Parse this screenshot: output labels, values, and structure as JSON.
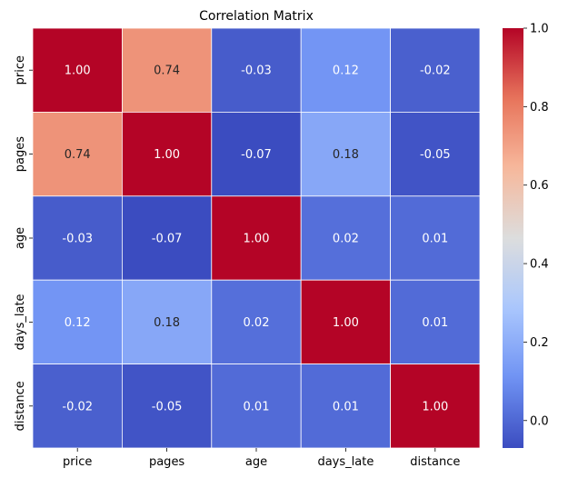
{
  "chart_data": {
    "type": "heatmap",
    "title": "Correlation Matrix",
    "xlabel": "",
    "ylabel": "",
    "x_categories": [
      "price",
      "pages",
      "age",
      "days_late",
      "distance"
    ],
    "y_categories": [
      "price",
      "pages",
      "age",
      "days_late",
      "distance"
    ],
    "values": [
      [
        1.0,
        0.74,
        -0.03,
        0.12,
        -0.02
      ],
      [
        0.74,
        1.0,
        -0.07,
        0.18,
        -0.05
      ],
      [
        -0.03,
        -0.07,
        1.0,
        0.02,
        0.01
      ],
      [
        0.12,
        0.18,
        0.02,
        1.0,
        0.01
      ],
      [
        -0.02,
        -0.05,
        0.01,
        0.01,
        1.0
      ]
    ],
    "cell_labels": [
      [
        "1.00",
        "0.74",
        "-0.03",
        "0.12",
        "-0.02"
      ],
      [
        "0.74",
        "1.00",
        "-0.07",
        "0.18",
        "-0.05"
      ],
      [
        "-0.03",
        "-0.07",
        "1.00",
        "0.02",
        "0.01"
      ],
      [
        "0.12",
        "0.18",
        "0.02",
        "1.00",
        "0.01"
      ],
      [
        "-0.02",
        "-0.05",
        "0.01",
        "0.01",
        "1.00"
      ]
    ],
    "colormap": "coolwarm",
    "colormap_stops": [
      "#3b4cc0",
      "#6f92f3",
      "#aac7fd",
      "#dcdddd",
      "#f7b89c",
      "#e7745b",
      "#b40426"
    ],
    "color_range": [
      -0.07,
      1.0
    ],
    "colorbar": {
      "ticks": [
        0.0,
        0.2,
        0.4,
        0.6,
        0.8,
        1.0
      ],
      "tick_labels": [
        "0.0",
        "0.2",
        "0.4",
        "0.6",
        "0.8",
        "1.0"
      ]
    },
    "grid": true,
    "grid_color": "#ffffff"
  }
}
